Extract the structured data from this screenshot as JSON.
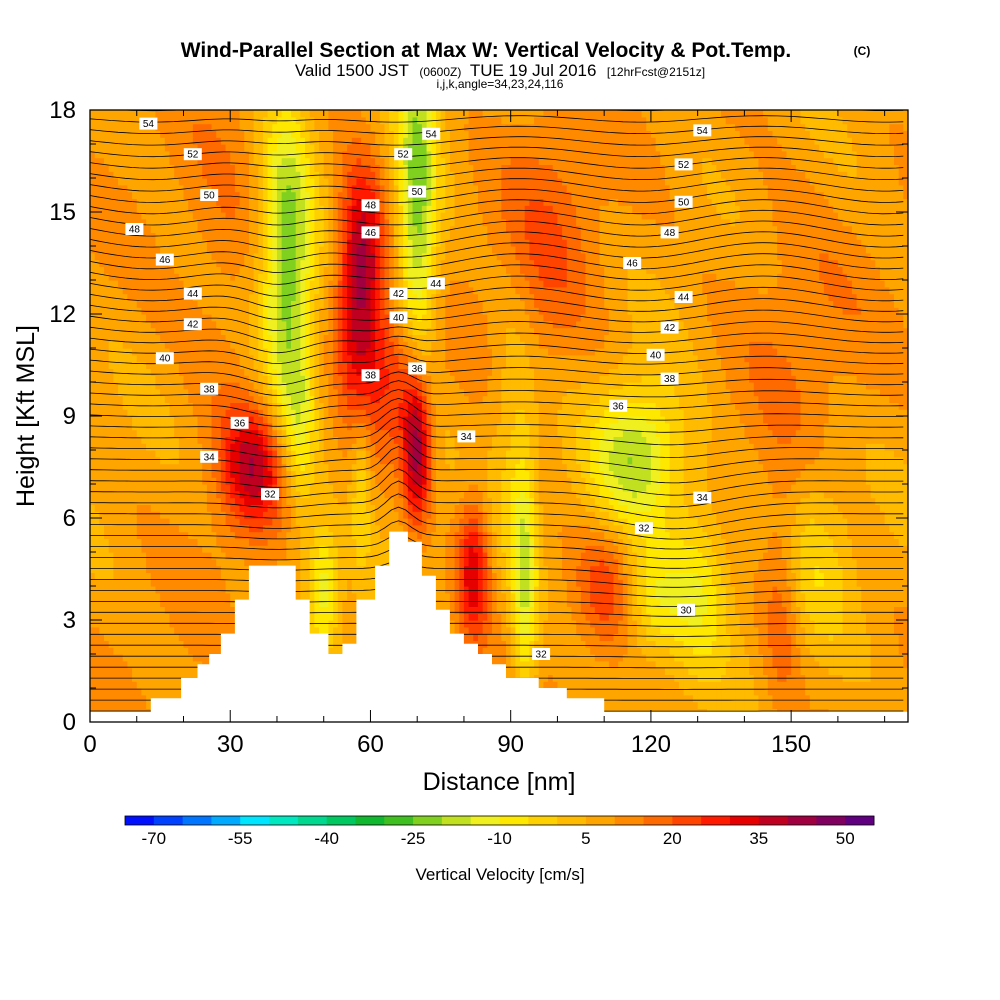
{
  "title": {
    "main": "Wind-Parallel Section at Max W: Vertical Velocity & Pot.Temp.",
    "copyright": "(C)",
    "valid_a": "Valid 1500 JST",
    "valid_b": "(0600Z)",
    "valid_c": "TUE 19 Jul 2016",
    "valid_d": "[12hrFcst@2151z]",
    "indices": "i,j,k,angle=34,23,24,116"
  },
  "chart_data": {
    "type": "heatmap",
    "xlabel": "Distance [nm]",
    "ylabel": "Height [Kft MSL]",
    "xlim": [
      0,
      175
    ],
    "ylim": [
      0,
      18
    ],
    "x_ticks": [
      "0",
      "30",
      "60",
      "90",
      "120",
      "150"
    ],
    "y_ticks": [
      "0",
      "3",
      "6",
      "9",
      "12",
      "15",
      "18"
    ],
    "colorbar": {
      "label": "Vertical Velocity [cm/s]",
      "min": -75,
      "max": 55,
      "step": 5,
      "tick_labels": [
        "-70",
        "-55",
        "-40",
        "-25",
        "-10",
        "5",
        "20",
        "35",
        "50"
      ],
      "colors": [
        "#0010ff",
        "#0040ff",
        "#0075ff",
        "#00aaff",
        "#00e5ff",
        "#00e8c0",
        "#00d890",
        "#00c860",
        "#10b830",
        "#40c020",
        "#80d020",
        "#c0e020",
        "#f0f020",
        "#ffe800",
        "#ffd000",
        "#ffbb00",
        "#ffa500",
        "#ff8a00",
        "#ff6a00",
        "#ff4400",
        "#ff1a00",
        "#e60000",
        "#c00020",
        "#a00040",
        "#800060",
        "#600080"
      ]
    },
    "terrain_kft": [
      [
        0,
        0.3
      ],
      [
        13,
        0.3
      ],
      [
        13,
        0.7
      ],
      [
        19.5,
        0.7
      ],
      [
        19.5,
        1.3
      ],
      [
        23,
        1.3
      ],
      [
        23,
        1.7
      ],
      [
        25.5,
        1.7
      ],
      [
        25.5,
        2
      ],
      [
        28,
        2
      ],
      [
        28,
        2.6
      ],
      [
        31,
        2.6
      ],
      [
        31,
        3.6
      ],
      [
        34,
        3.6
      ],
      [
        34,
        4.6
      ],
      [
        44,
        4.6
      ],
      [
        44,
        3.6
      ],
      [
        47,
        3.6
      ],
      [
        47,
        2.6
      ],
      [
        51,
        2.6
      ],
      [
        51,
        2
      ],
      [
        54,
        2
      ],
      [
        54,
        2.3
      ],
      [
        57,
        2.3
      ],
      [
        57,
        3.6
      ],
      [
        61,
        3.6
      ],
      [
        61,
        4.6
      ],
      [
        64,
        4.6
      ],
      [
        64,
        5.6
      ],
      [
        68,
        5.6
      ],
      [
        68,
        5.3
      ],
      [
        71,
        5.3
      ],
      [
        71,
        4.3
      ],
      [
        74,
        4.3
      ],
      [
        74,
        3.3
      ],
      [
        77,
        3.3
      ],
      [
        77,
        2.6
      ],
      [
        80,
        2.6
      ],
      [
        80,
        2.3
      ],
      [
        83,
        2.3
      ],
      [
        83,
        2
      ],
      [
        86,
        2
      ],
      [
        86,
        1.7
      ],
      [
        89,
        1.7
      ],
      [
        89,
        1.3
      ],
      [
        96,
        1.3
      ],
      [
        96,
        1
      ],
      [
        102,
        1
      ],
      [
        102,
        0.7
      ],
      [
        110,
        0.7
      ],
      [
        110,
        0.3
      ],
      [
        175,
        0.3
      ]
    ],
    "velocity_features": [
      {
        "x": 35,
        "y": 7.5,
        "sx": 5,
        "sy": 1.3,
        "amp": 28
      },
      {
        "x": 42,
        "y": 13.5,
        "sx": 4,
        "sy": 3.5,
        "amp": -32
      },
      {
        "x": 45,
        "y": 8.5,
        "sx": 2.5,
        "sy": 2.2,
        "amp": -14
      },
      {
        "x": 50,
        "y": 4,
        "sx": 2.5,
        "sy": 1.3,
        "amp": -22
      },
      {
        "x": 58,
        "y": 13.5,
        "sx": 3.5,
        "sy": 2,
        "amp": 35
      },
      {
        "x": 58,
        "y": 10.5,
        "sx": 3,
        "sy": 1.5,
        "amp": 12
      },
      {
        "x": 58,
        "y": 7,
        "sx": 1.5,
        "sy": 2,
        "amp": -12
      },
      {
        "x": 67,
        "y": 10.2,
        "sx": 4,
        "sy": 1.5,
        "amp": 20
      },
      {
        "x": 70,
        "y": 8,
        "sx": 2.2,
        "sy": 1.6,
        "amp": 42
      },
      {
        "x": 70,
        "y": 14.5,
        "sx": 3,
        "sy": 5,
        "amp": -30
      },
      {
        "x": 82,
        "y": 4.5,
        "sx": 2.5,
        "sy": 1.5,
        "amp": 26
      },
      {
        "x": 93,
        "y": 4,
        "sx": 2,
        "sy": 3,
        "amp": -22
      },
      {
        "x": 98,
        "y": 14,
        "sx": 8,
        "sy": 3,
        "amp": 10
      },
      {
        "x": 117,
        "y": 7.8,
        "sx": 7,
        "sy": 1.5,
        "amp": -28
      },
      {
        "x": 120,
        "y": 3.5,
        "sx": 4,
        "sy": 1.2,
        "amp": -15
      },
      {
        "x": 110,
        "y": 4,
        "sx": 4,
        "sy": 1.2,
        "amp": 12
      },
      {
        "x": 130,
        "y": 4,
        "sx": 5,
        "sy": 1.8,
        "amp": -18
      },
      {
        "x": 148,
        "y": 3.5,
        "sx": 3,
        "sy": 2.5,
        "amp": 12
      },
      {
        "x": 155,
        "y": 5,
        "sx": 6,
        "sy": 2,
        "amp": -10
      },
      {
        "x": 90,
        "y": 9,
        "sx": 3,
        "sy": 3,
        "amp": -8
      },
      {
        "x": 30,
        "y": 13,
        "sx": 8,
        "sy": 4,
        "amp": 6
      },
      {
        "x": 150,
        "y": 12,
        "sx": 10,
        "sy": 3,
        "amp": 6
      }
    ],
    "contour_labels": [
      {
        "text": "54",
        "x": 12.5,
        "y": 17.6
      },
      {
        "text": "52",
        "x": 22,
        "y": 16.7
      },
      {
        "text": "50",
        "x": 25.5,
        "y": 15.5
      },
      {
        "text": "48",
        "x": 9.5,
        "y": 14.5
      },
      {
        "text": "46",
        "x": 16,
        "y": 13.6
      },
      {
        "text": "44",
        "x": 22,
        "y": 12.6
      },
      {
        "text": "42",
        "x": 22,
        "y": 11.7
      },
      {
        "text": "40",
        "x": 16,
        "y": 10.7
      },
      {
        "text": "38",
        "x": 25.5,
        "y": 9.8
      },
      {
        "text": "36",
        "x": 32,
        "y": 8.8
      },
      {
        "text": "34",
        "x": 25.5,
        "y": 7.8
      },
      {
        "text": "32",
        "x": 38.5,
        "y": 6.7
      },
      {
        "text": "48",
        "x": 60,
        "y": 15.2
      },
      {
        "text": "46",
        "x": 60,
        "y": 14.4
      },
      {
        "text": "42",
        "x": 66,
        "y": 12.6
      },
      {
        "text": "40",
        "x": 66,
        "y": 11.9
      },
      {
        "text": "38",
        "x": 60,
        "y": 10.2
      },
      {
        "text": "36",
        "x": 70,
        "y": 10.4
      },
      {
        "text": "34",
        "x": 80.5,
        "y": 8.4
      },
      {
        "text": "52",
        "x": 67,
        "y": 16.7
      },
      {
        "text": "54",
        "x": 73,
        "y": 17.3
      },
      {
        "text": "50",
        "x": 70,
        "y": 15.6
      },
      {
        "text": "44",
        "x": 74,
        "y": 12.9
      },
      {
        "text": "54",
        "x": 131,
        "y": 17.4
      },
      {
        "text": "52",
        "x": 127,
        "y": 16.4
      },
      {
        "text": "50",
        "x": 127,
        "y": 15.3
      },
      {
        "text": "48",
        "x": 124,
        "y": 14.4
      },
      {
        "text": "46",
        "x": 116,
        "y": 13.5
      },
      {
        "text": "44",
        "x": 127,
        "y": 12.5
      },
      {
        "text": "42",
        "x": 124,
        "y": 11.6
      },
      {
        "text": "40",
        "x": 121,
        "y": 10.8
      },
      {
        "text": "38",
        "x": 124,
        "y": 10.1
      },
      {
        "text": "36",
        "x": 113,
        "y": 9.3
      },
      {
        "text": "34",
        "x": 131,
        "y": 6.6
      },
      {
        "text": "32",
        "x": 118.5,
        "y": 5.7
      },
      {
        "text": "30",
        "x": 127.5,
        "y": 3.3
      },
      {
        "text": "32",
        "x": 96.5,
        "y": 2
      }
    ]
  }
}
